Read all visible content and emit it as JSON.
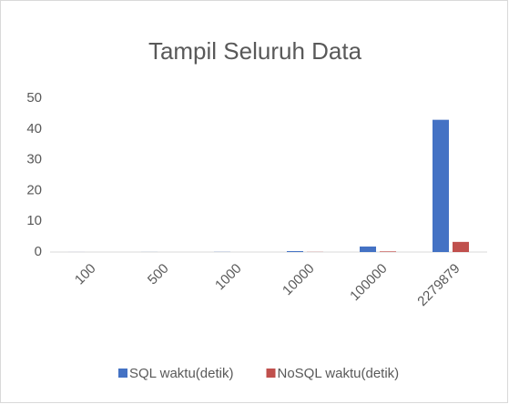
{
  "chart_data": {
    "type": "bar",
    "title": "Tampil Seluruh Data",
    "categories": [
      "100",
      "500",
      "1000",
      "10000",
      "100000",
      "2279879"
    ],
    "series": [
      {
        "name": "SQL waktu(detik)",
        "color": "#4472c4",
        "values": [
          0.01,
          0.02,
          0.05,
          0.3,
          1.8,
          43
        ]
      },
      {
        "name": "NoSQL waktu(detik)",
        "color": "#c0504d",
        "values": [
          0,
          0,
          0,
          0.05,
          0.2,
          3.3
        ]
      }
    ],
    "ylim": [
      0,
      50
    ],
    "yticks": [
      0,
      10,
      20,
      30,
      40,
      50
    ],
    "grid": false,
    "legend": "bottom"
  }
}
